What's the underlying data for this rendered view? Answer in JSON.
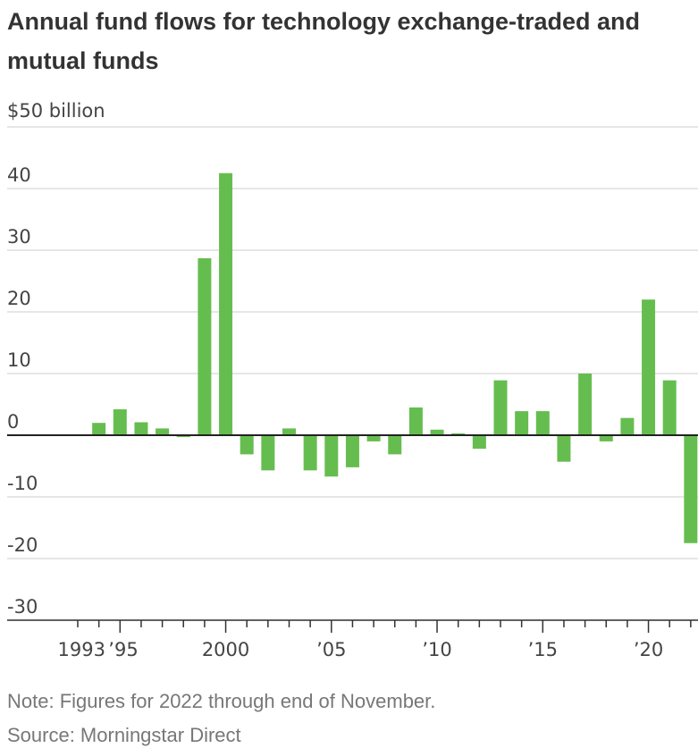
{
  "chart_data": {
    "type": "bar",
    "title": "Annual fund flows for technology exchange-traded and mutual funds",
    "unit_label": "$50 billion",
    "ylim": [
      -30,
      50
    ],
    "y_ticks": [
      -30,
      -20,
      -10,
      0,
      10,
      20,
      30,
      40,
      50
    ],
    "y_tick_labels": [
      "-30",
      "-20",
      "-10",
      "0",
      "10",
      "20",
      "30",
      "40",
      ""
    ],
    "x": [
      1993,
      1994,
      1995,
      1996,
      1997,
      1998,
      1999,
      2000,
      2001,
      2002,
      2003,
      2004,
      2005,
      2006,
      2007,
      2008,
      2009,
      2010,
      2011,
      2012,
      2013,
      2014,
      2015,
      2016,
      2017,
      2018,
      2019,
      2020,
      2021,
      2022
    ],
    "values": [
      0,
      2.0,
      4.2,
      2.1,
      1.1,
      -0.3,
      28.7,
      42.5,
      -3.1,
      -5.7,
      1.1,
      -5.7,
      -6.7,
      -5.2,
      -1.0,
      -3.1,
      4.5,
      0.9,
      0.3,
      -2.2,
      8.9,
      3.9,
      3.9,
      -4.3,
      10.0,
      -1.0,
      2.8,
      22.0,
      8.9,
      -17.5
    ],
    "x_tick_labels": [
      {
        "year": 1993,
        "label": "1993"
      },
      {
        "year": 1995,
        "label": "’95"
      },
      {
        "year": 2000,
        "label": "2000"
      },
      {
        "year": 2005,
        "label": "’05"
      },
      {
        "year": 2010,
        "label": "’10"
      },
      {
        "year": 2015,
        "label": "’15"
      },
      {
        "year": 2020,
        "label": "’20"
      }
    ],
    "bar_color": "#66bd4f",
    "grid": true
  },
  "footer": {
    "note": "Note: Figures for 2022 through end of November.",
    "source": "Source: Morningstar Direct"
  }
}
